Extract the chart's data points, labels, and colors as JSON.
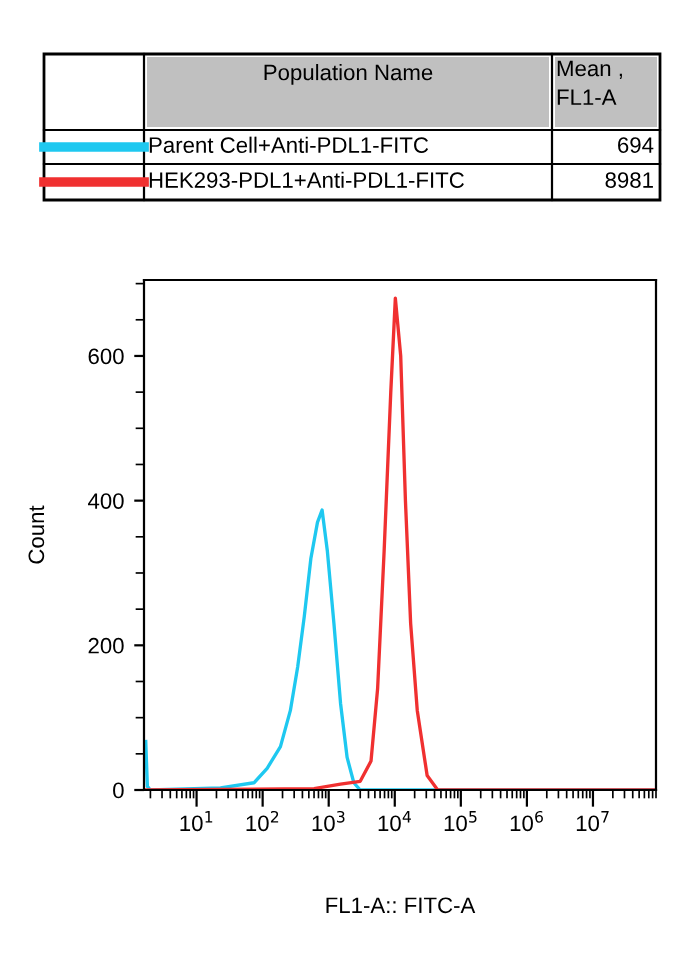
{
  "chart_data": {
    "type": "line",
    "xlabel": "FL1-A:: FITC-A",
    "ylabel": "Count",
    "log": "x",
    "annotations": [
      "Population Name",
      "Mean ,\nFL1-A",
      "694",
      "8981"
    ],
    "series": [
      {
        "name": "Parent Cell+Anti-PDL1-FITC",
        "color": "#1ec8f0",
        "x": [
          1.7,
          1.8,
          2,
          23,
          74,
          117,
          186,
          263,
          339,
          427,
          537,
          676,
          794,
          955,
          1200,
          1510,
          1900,
          2400,
          3000,
          90000000
        ],
        "values": [
          67,
          5,
          0,
          3,
          10,
          30,
          60,
          110,
          170,
          240,
          320,
          370,
          387,
          330,
          230,
          120,
          45,
          10,
          0,
          0
        ]
      },
      {
        "name": "HEK293-PDL1+Anti-PDL1-FITC",
        "color": "#f03030",
        "x": [
          1.7,
          600,
          1510,
          3000,
          4370,
          5500,
          6900,
          8700,
          10200,
          12300,
          14500,
          17400,
          21900,
          30900,
          44700,
          90000000
        ],
        "values": [
          0,
          2,
          8,
          12,
          40,
          140,
          330,
          550,
          680,
          600,
          400,
          230,
          110,
          20,
          0,
          0
        ]
      }
    ],
    "xlim": [
      1.6,
      90000000
    ],
    "xticks": [
      {
        "value": 10,
        "label": "10$^{1}$"
      },
      {
        "value": 100,
        "label": "10$^{2}$"
      },
      {
        "value": 1000,
        "label": "10$^{3}$"
      },
      {
        "value": 10000,
        "label": "10$^{4}$"
      },
      {
        "value": 100000,
        "label": "10$^{5}$"
      },
      {
        "value": 1000000,
        "label": "10$^{6}$"
      },
      {
        "value": 10000000,
        "label": "10$^{7}$"
      }
    ],
    "ylim": [
      0,
      705
    ],
    "yticks": [
      0,
      200,
      400,
      600
    ],
    "grid": false,
    "legend": "top",
    "marker": "none",
    "line_style": "solid"
  }
}
